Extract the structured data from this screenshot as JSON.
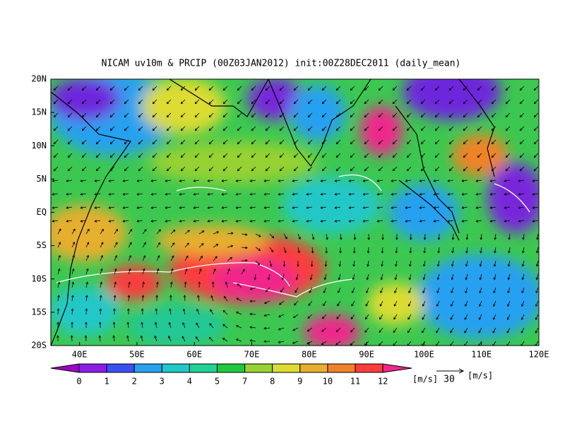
{
  "title": "NICAM uv10m & PRCIP (00Z03JAN2012) init:00Z28DEC2011 (daily_mean)",
  "lat_labels": [
    "20N",
    "15N",
    "10N",
    "5N",
    "EQ",
    "5S",
    "10S",
    "15S",
    "20S"
  ],
  "lon_labels": [
    "40E",
    "50E",
    "60E",
    "70E",
    "80E",
    "90E",
    "100E",
    "110E",
    "120E"
  ],
  "colorbar": {
    "labels": [
      "0",
      "1",
      "2",
      "3",
      "4",
      "5",
      "7",
      "8",
      "9",
      "10",
      "11",
      "12"
    ],
    "unit": "[m/s]"
  },
  "vector_reference": {
    "value": "30",
    "unit": "[m/s]"
  }
}
